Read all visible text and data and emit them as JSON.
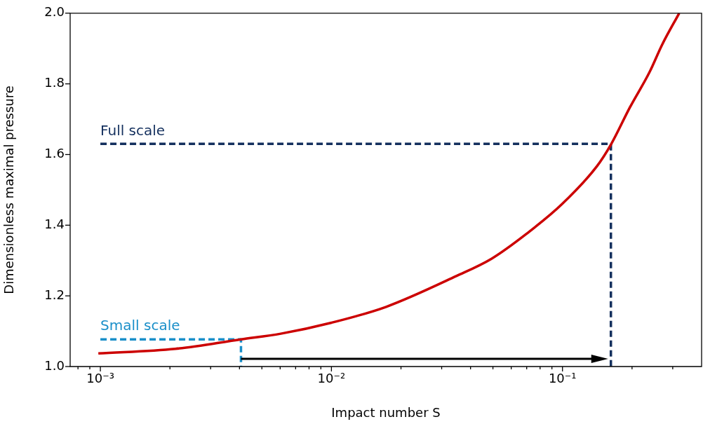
{
  "chart_data": {
    "type": "line",
    "xlabel": "Impact number S",
    "ylabel": "Dimensionless maximal pressure",
    "log": "x",
    "grid": false,
    "legend": false,
    "marker": "none",
    "xlim": [
      0.00074,
      0.4
    ],
    "ylim": [
      1.0,
      2.0
    ],
    "xticks": [
      {
        "value": 0.001,
        "label": "10⁻³"
      },
      {
        "value": 0.002,
        "label": null
      },
      {
        "value": 0.003,
        "label": null
      },
      {
        "value": 0.004,
        "label": null
      },
      {
        "value": 0.005,
        "label": null
      },
      {
        "value": 0.006,
        "label": null
      },
      {
        "value": 0.007,
        "label": null
      },
      {
        "value": 0.008,
        "label": null
      },
      {
        "value": 0.009,
        "label": null
      },
      {
        "value": 0.01,
        "label": "10⁻²"
      },
      {
        "value": 0.02,
        "label": null
      },
      {
        "value": 0.03,
        "label": null
      },
      {
        "value": 0.04,
        "label": null
      },
      {
        "value": 0.05,
        "label": null
      },
      {
        "value": 0.06,
        "label": null
      },
      {
        "value": 0.07,
        "label": null
      },
      {
        "value": 0.08,
        "label": null
      },
      {
        "value": 0.09,
        "label": null
      },
      {
        "value": 0.1,
        "label": "10⁻¹"
      },
      {
        "value": 0.2,
        "label": null
      },
      {
        "value": 0.3,
        "label": null
      },
      {
        "value": 0.0008,
        "label": null
      },
      {
        "value": 0.0009,
        "label": null
      }
    ],
    "yticks": [
      {
        "value": 1.0,
        "label": "1.0"
      },
      {
        "value": 1.2,
        "label": "1.2"
      },
      {
        "value": 1.4,
        "label": "1.4"
      },
      {
        "value": 1.6,
        "label": "1.6"
      },
      {
        "value": 1.8,
        "label": "1.8"
      },
      {
        "value": 2.0,
        "label": "2.0"
      }
    ],
    "series": [
      {
        "color": "#cc0000",
        "line_style": "solid",
        "x": [
          0.00098,
          0.00211,
          0.00406,
          0.00604,
          0.01,
          0.01726,
          0.0347,
          0.0493,
          0.07,
          0.0993,
          0.141,
          0.162,
          0.196,
          0.238,
          0.27,
          0.32
        ],
        "values": [
          1.037,
          1.05,
          1.077,
          1.093,
          1.124,
          1.169,
          1.256,
          1.305,
          1.376,
          1.459,
          1.567,
          1.628,
          1.734,
          1.833,
          1.911,
          2.0
        ]
      },
      {
        "name": "Full scale",
        "color": "#14305e",
        "line_style": "dashed",
        "x": [
          0.001,
          0.162,
          0.162
        ],
        "values": [
          1.63,
          1.63,
          1.0
        ]
      },
      {
        "name": "Small scale",
        "color": "#1a8fc9",
        "line_style": "dashed",
        "x": [
          0.001,
          0.00406,
          0.00406
        ],
        "values": [
          1.077,
          1.077,
          1.0
        ]
      }
    ]
  }
}
